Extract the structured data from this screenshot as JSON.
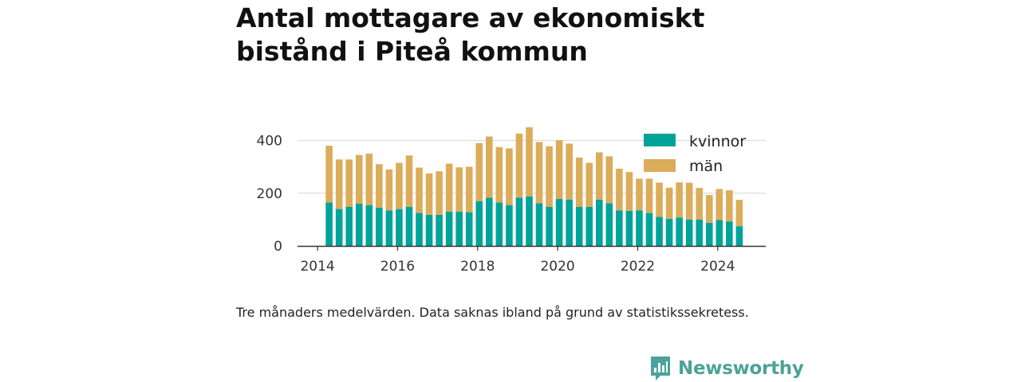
{
  "title": "Antal mottagare av ekonomiskt bistånd i Piteå kommun",
  "note": "Tre månaders medelvärden. Data saknas ibland på grund av statistikssekretess.",
  "brand": {
    "name": "Newsworthy",
    "icon": "newsworthy-logo-icon"
  },
  "colors": {
    "kvinnor": "#00a39a",
    "man": "#dbac5a",
    "grid": "#dddddd",
    "axis": "#333333"
  },
  "chart_data": {
    "type": "bar",
    "stacked": true,
    "x_ticks": [
      "2014",
      "2016",
      "2018",
      "2020",
      "2022",
      "2024"
    ],
    "y_ticks": [
      "0",
      "200",
      "400"
    ],
    "ylim": [
      0,
      480
    ],
    "xlim": [
      2013.5,
      2025.2
    ],
    "grid": true,
    "legend_position": "top-right",
    "legend": [
      "kvinnor",
      "män"
    ],
    "x": [
      2014.29,
      2014.54,
      2014.79,
      2015.04,
      2015.29,
      2015.54,
      2015.79,
      2016.04,
      2016.29,
      2016.54,
      2016.79,
      2017.04,
      2017.29,
      2017.54,
      2017.79,
      2018.04,
      2018.29,
      2018.54,
      2018.79,
      2019.04,
      2019.29,
      2019.54,
      2019.79,
      2020.04,
      2020.29,
      2020.54,
      2020.79,
      2021.04,
      2021.29,
      2021.54,
      2021.79,
      2022.04,
      2022.29,
      2022.54,
      2022.79,
      2023.04,
      2023.29,
      2023.54,
      2023.79,
      2024.04,
      2024.29,
      2024.54
    ],
    "series": [
      {
        "name": "kvinnor",
        "values": [
          165,
          140,
          148,
          160,
          155,
          145,
          135,
          140,
          148,
          125,
          118,
          118,
          130,
          130,
          128,
          170,
          183,
          165,
          155,
          183,
          188,
          162,
          148,
          178,
          175,
          148,
          148,
          175,
          162,
          135,
          133,
          135,
          125,
          110,
          103,
          108,
          100,
          100,
          88,
          98,
          93,
          75
        ]
      },
      {
        "name": "män",
        "values": [
          215,
          188,
          180,
          185,
          195,
          165,
          155,
          175,
          195,
          172,
          157,
          165,
          182,
          168,
          172,
          220,
          232,
          210,
          215,
          243,
          262,
          232,
          230,
          223,
          213,
          187,
          167,
          180,
          178,
          158,
          147,
          120,
          130,
          130,
          118,
          133,
          140,
          120,
          105,
          118,
          118,
          100
        ]
      }
    ]
  }
}
